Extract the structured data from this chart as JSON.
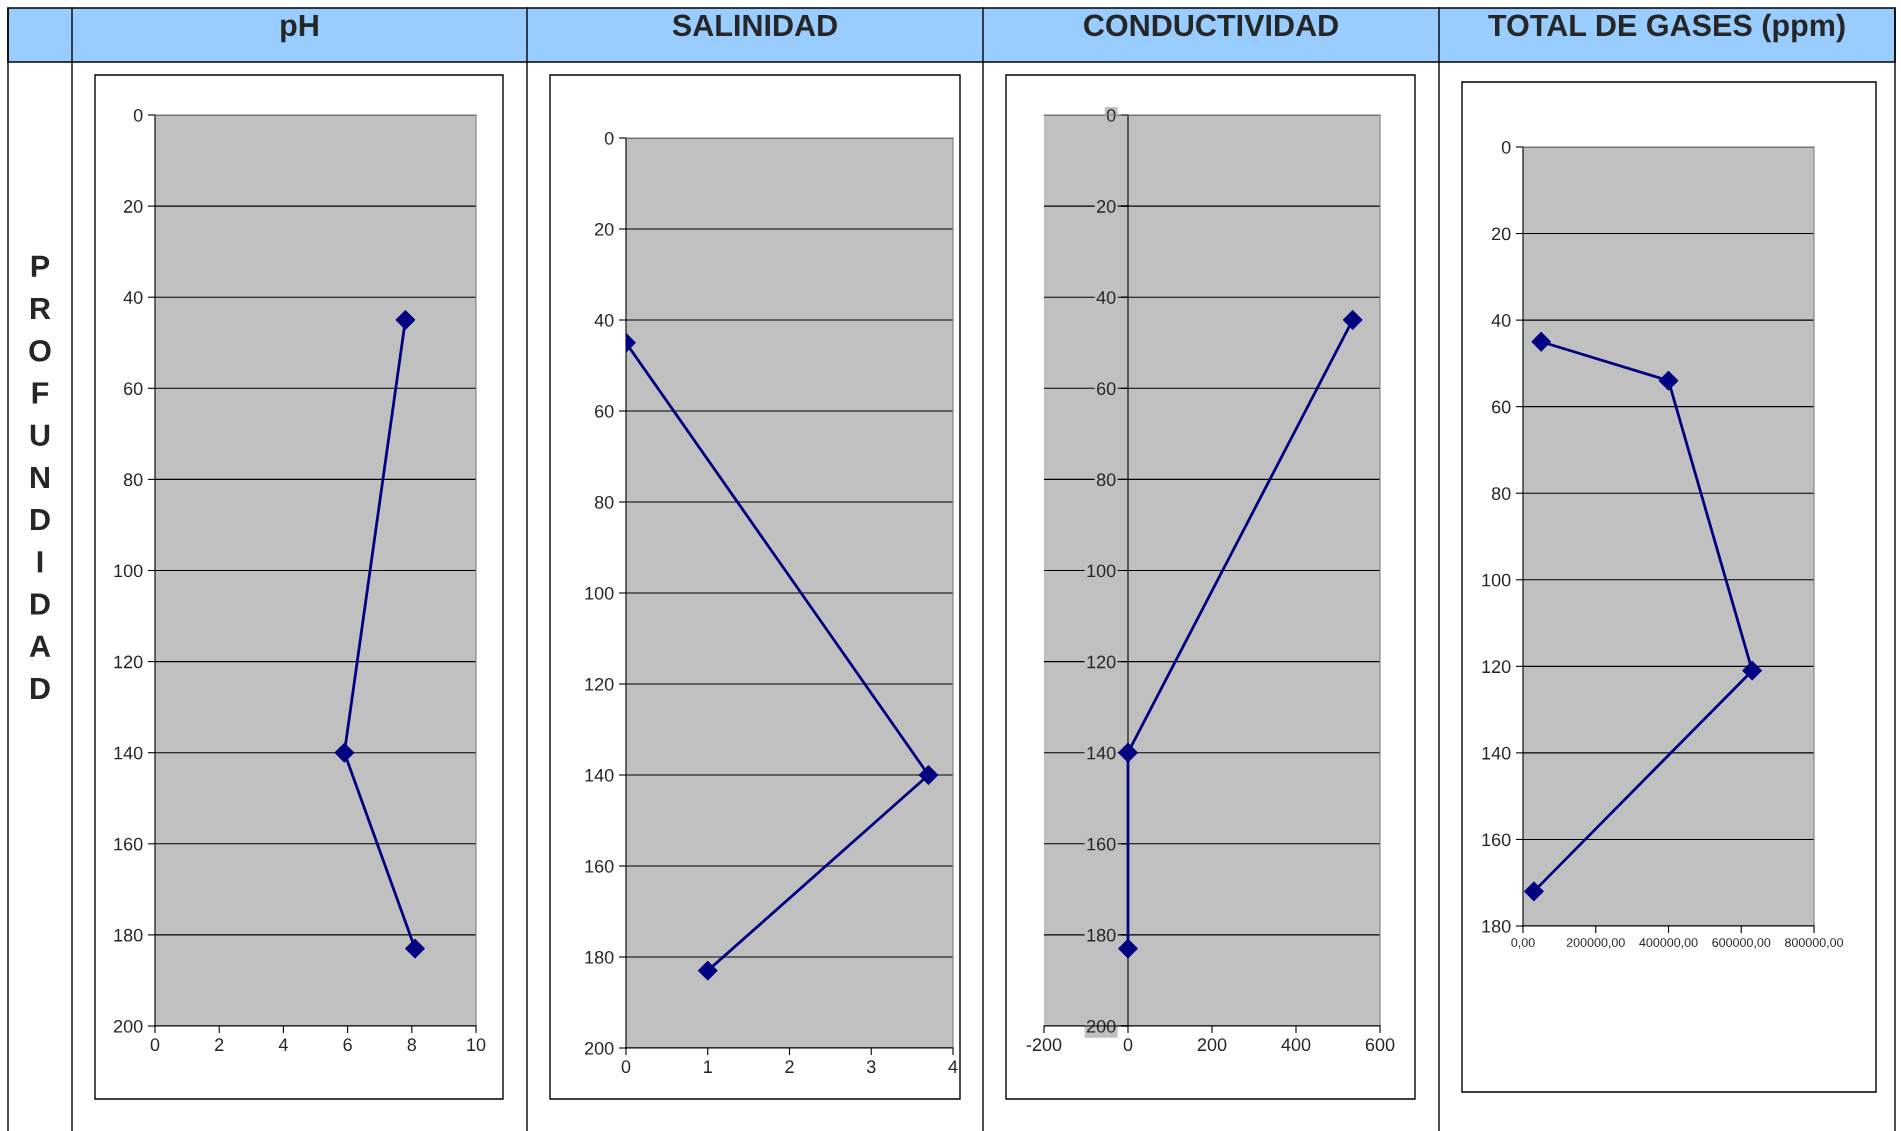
{
  "chart_data": [
    {
      "type": "line",
      "title": "pH",
      "ylabel": "PROFUNDIDAD",
      "xlim": [
        0,
        10
      ],
      "xticks": [
        0,
        2,
        4,
        6,
        8,
        10
      ],
      "ylim": [
        200,
        0
      ],
      "yticks": [
        0,
        20,
        40,
        60,
        80,
        100,
        120,
        140,
        160,
        180,
        200
      ],
      "grid": "y",
      "marker": "diamond",
      "line_style": "solid",
      "series": [
        {
          "color": "#000080",
          "x": [
            7.8,
            5.9,
            8.1
          ],
          "values": [
            45,
            140,
            183
          ]
        }
      ]
    },
    {
      "type": "line",
      "title": "SALINIDAD",
      "xlim": [
        0,
        4
      ],
      "xticks": [
        0,
        1,
        2,
        3,
        4
      ],
      "ylim": [
        200,
        0
      ],
      "yticks": [
        0,
        20,
        40,
        60,
        80,
        100,
        120,
        140,
        160,
        180,
        200
      ],
      "grid": "y",
      "marker": "diamond",
      "line_style": "solid",
      "series": [
        {
          "color": "#000080",
          "x": [
            0,
            3.7,
            1
          ],
          "values": [
            45,
            140,
            183
          ]
        }
      ]
    },
    {
      "type": "line",
      "title": "CONDUCTIVIDAD",
      "xlim": [
        -200,
        600
      ],
      "xticks": [
        -200,
        0,
        200,
        400,
        600
      ],
      "ylim": [
        200,
        0
      ],
      "yticks": [
        0,
        20,
        40,
        60,
        80,
        100,
        120,
        140,
        160,
        180,
        200
      ],
      "grid": "y",
      "marker": "diamond",
      "line_style": "solid",
      "series": [
        {
          "color": "#000080",
          "x": [
            535,
            0,
            0
          ],
          "values": [
            45,
            140,
            183
          ]
        }
      ]
    },
    {
      "type": "line",
      "title": "TOTAL DE GASES (ppm)",
      "xlim": [
        0,
        800000
      ],
      "xticks": [
        {
          "value": 0,
          "label": "0,00"
        },
        {
          "value": 200000,
          "label": "200000,00"
        },
        {
          "value": 400000,
          "label": "400000,00"
        },
        {
          "value": 600000,
          "label": "600000,00"
        },
        {
          "value": 800000,
          "label": "800000,00"
        }
      ],
      "ylim": [
        180,
        0
      ],
      "yticks": [
        0,
        20,
        40,
        60,
        80,
        100,
        120,
        140,
        160,
        180
      ],
      "grid": "y",
      "marker": "diamond",
      "line_style": "solid",
      "series": [
        {
          "color": "#000080",
          "x": [
            50000,
            400000,
            630000,
            30000
          ],
          "values": [
            45,
            54,
            121,
            172
          ]
        }
      ]
    }
  ]
}
